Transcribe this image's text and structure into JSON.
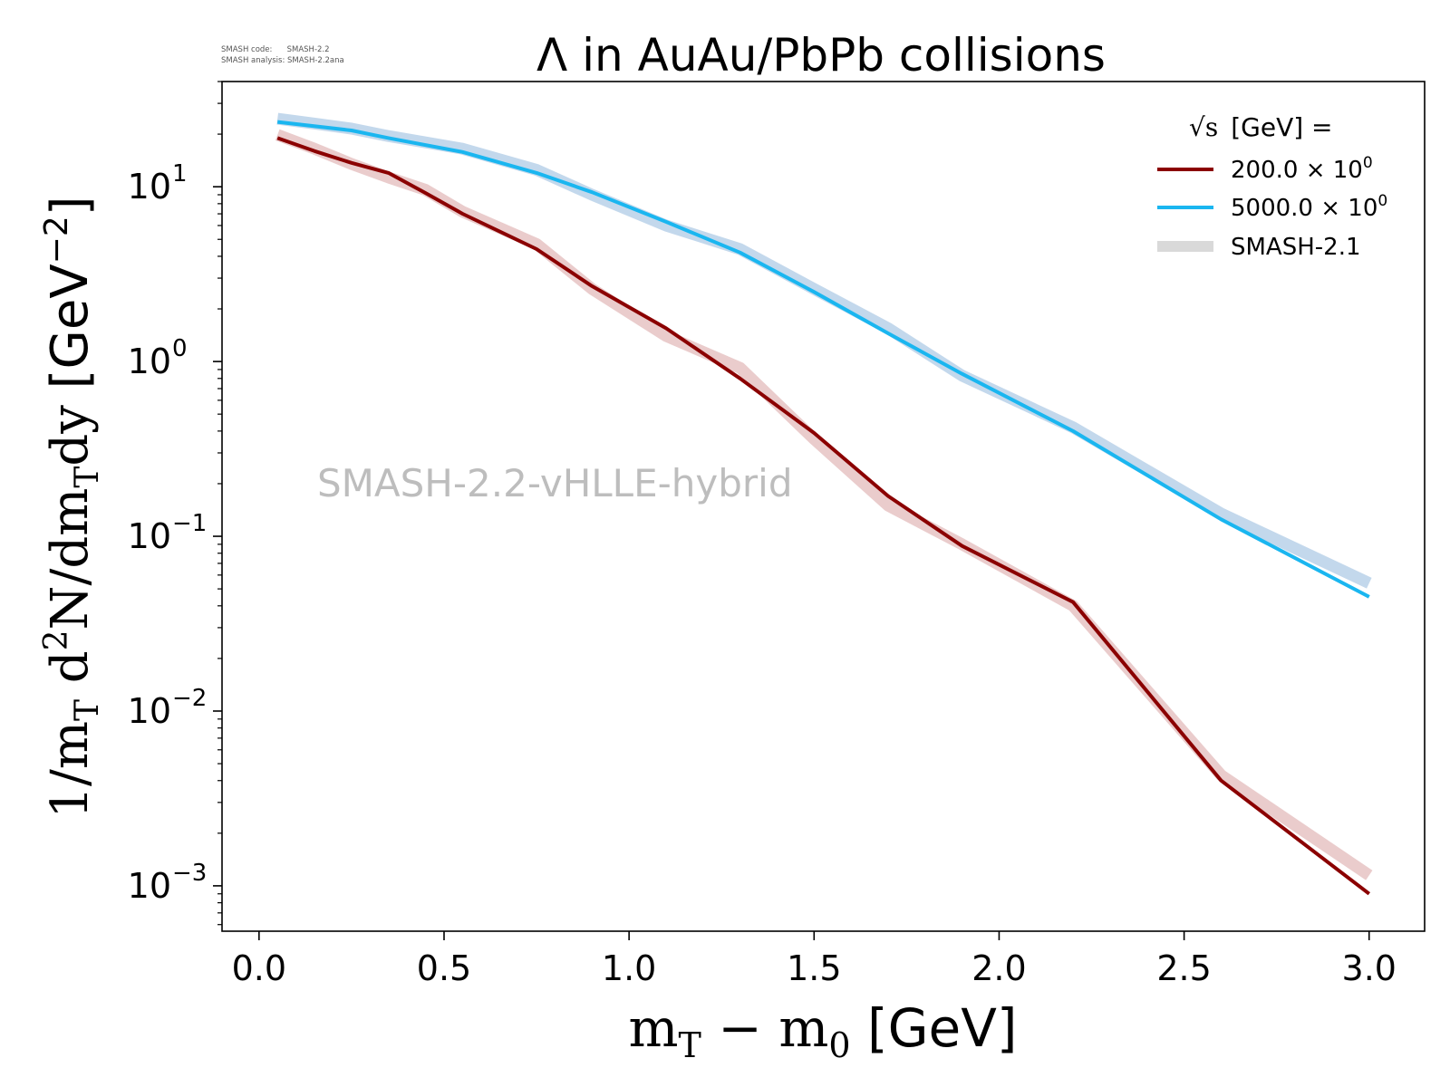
{
  "chart_data": {
    "type": "line",
    "title": "Λ in AuAu/PbPb collisions",
    "meta_lines": [
      "SMASH code:      SMASH-2.2",
      "SMASH analysis: SMASH-2.2ana"
    ],
    "watermark": "SMASH-2.2-vHLLE-hybrid",
    "xlabel": "m_T - m_0 [GeV]",
    "xlabel_parts": {
      "var": "m",
      "sub1": "T",
      "minus": " − ",
      "sub2": "0",
      "unit": " [GeV]"
    },
    "ylabel": "1/m_T d²N/dm_Tdy [GeV⁻²]",
    "ylabel_parts": {
      "prefix": "1/m",
      "sub": "T",
      "mid1": " d",
      "sup": "2",
      "mid2": "N/dm",
      "sub2": "T",
      "mid3": "dy",
      "unit": " [GeV",
      "unit_sup": "−2",
      "unit_close": "]"
    },
    "xlim": [
      -0.1,
      3.15
    ],
    "ylim": [
      0.00055,
      40
    ],
    "yscale": "log",
    "xticks": [
      "0.0",
      "0.5",
      "1.0",
      "1.5",
      "2.0",
      "2.5",
      "3.0"
    ],
    "xtick_values": [
      0.0,
      0.5,
      1.0,
      1.5,
      2.0,
      2.5,
      3.0
    ],
    "ytick_exponents": [
      "−3",
      "−2",
      "−1",
      "0",
      "1"
    ],
    "legend": {
      "title": "[GeV] =",
      "title_symbol": "√s",
      "placement": "top-right",
      "entries": [
        {
          "label": "200.0 × 10",
          "sup": "0",
          "color": "#8b0000",
          "style": "line"
        },
        {
          "label": "5000.0 × 10",
          "sup": "0",
          "color": "#1ab6f0",
          "style": "line"
        },
        {
          "label": "SMASH-2.1",
          "color": "#d9d9d9",
          "style": "band"
        }
      ]
    },
    "series": [
      {
        "name": "200.0 × 10^0",
        "color": "#8b0000",
        "x": [
          0.05,
          0.15,
          0.25,
          0.35,
          0.45,
          0.55,
          0.75,
          0.9,
          1.1,
          1.3,
          1.5,
          1.7,
          1.9,
          2.2,
          2.6,
          3.0
        ],
        "y": [
          19.0,
          16.0,
          13.7,
          12.0,
          9.2,
          7.0,
          4.4,
          2.7,
          1.55,
          0.8,
          0.39,
          0.17,
          0.088,
          0.042,
          0.004,
          0.0009
        ]
      },
      {
        "name": "5000.0 × 10^0",
        "color": "#1ab6f0",
        "x": [
          0.05,
          0.25,
          0.35,
          0.55,
          0.75,
          0.9,
          1.1,
          1.3,
          1.5,
          1.7,
          1.9,
          2.2,
          2.6,
          3.0
        ],
        "y": [
          23.5,
          21.0,
          19.0,
          15.8,
          12.0,
          9.3,
          6.3,
          4.2,
          2.5,
          1.45,
          0.85,
          0.4,
          0.125,
          0.045
        ]
      },
      {
        "name": "SMASH-2.1 (200)",
        "color": "#e8c6c6",
        "band": true,
        "x": [
          0.05,
          0.15,
          0.25,
          0.35,
          0.45,
          0.55,
          0.75,
          0.9,
          1.1,
          1.3,
          1.5,
          1.7,
          1.9,
          2.2,
          2.6,
          3.0
        ],
        "y": [
          19.8,
          16.5,
          13.5,
          11.3,
          9.6,
          7.2,
          4.7,
          2.6,
          1.4,
          0.92,
          0.36,
          0.15,
          0.09,
          0.04,
          0.0043,
          0.00115
        ]
      },
      {
        "name": "SMASH-2.1 (5000)",
        "color": "#bcd4ea",
        "band": true,
        "x": [
          0.05,
          0.15,
          0.25,
          0.35,
          0.55,
          0.75,
          0.9,
          1.1,
          1.3,
          1.5,
          1.7,
          1.9,
          2.2,
          2.6,
          3.0
        ],
        "y": [
          24.5,
          23.0,
          21.5,
          19.5,
          16.5,
          12.5,
          9.0,
          6.0,
          4.4,
          2.6,
          1.55,
          0.83,
          0.42,
          0.135,
          0.054
        ]
      }
    ]
  }
}
